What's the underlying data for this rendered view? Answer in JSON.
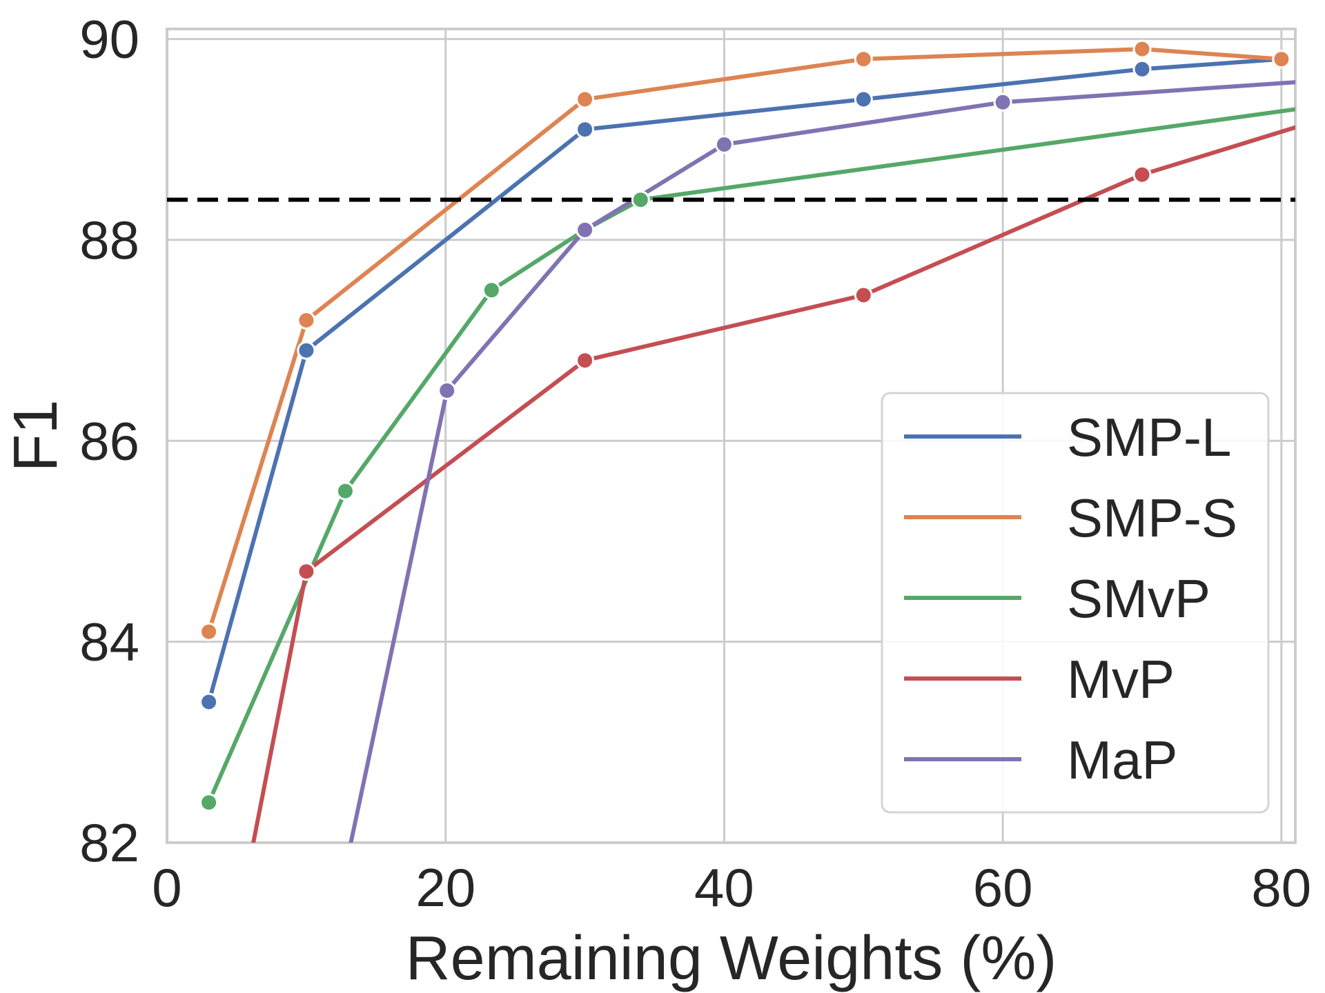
{
  "chart_data": {
    "type": "line",
    "title": "",
    "xlabel": "Remaining Weights (%)",
    "ylabel": "F1",
    "xlim": [
      0,
      81
    ],
    "ylim": [
      82,
      90.1
    ],
    "xticks": [
      0,
      20,
      40,
      60,
      80
    ],
    "yticks": [
      82,
      84,
      86,
      88,
      90
    ],
    "xtick_labels": [
      "0",
      "20",
      "40",
      "60",
      "80"
    ],
    "ytick_labels": [
      "82",
      "84",
      "86",
      "88",
      "90"
    ],
    "grid": true,
    "legend_location": "lower-right",
    "reference_line": {
      "y": 88.4,
      "style": "dashed",
      "color": "#000000"
    },
    "series": [
      {
        "name": "SMP-L",
        "color": "#4c72b0",
        "x": [
          3,
          10,
          30,
          50,
          70,
          80
        ],
        "y": [
          83.4,
          86.9,
          89.1,
          89.4,
          89.7,
          89.8
        ]
      },
      {
        "name": "SMP-S",
        "color": "#dd8452",
        "x": [
          3,
          10,
          30,
          50,
          70,
          80
        ],
        "y": [
          84.1,
          87.2,
          89.4,
          89.8,
          89.9,
          89.8
        ]
      },
      {
        "name": "SMvP",
        "color": "#55a868",
        "x": [
          3,
          12.8,
          23.3,
          30,
          34,
          81
        ],
        "y": [
          82.4,
          85.5,
          87.5,
          88.1,
          88.4,
          89.3
        ]
      },
      {
        "name": "MvP",
        "color": "#c44e52",
        "x": [
          6.2,
          10,
          30,
          50,
          70,
          81
        ],
        "y": [
          82.0,
          84.7,
          86.8,
          87.45,
          88.65,
          89.12
        ]
      },
      {
        "name": "MaP",
        "color": "#8172b2",
        "x": [
          13.2,
          20.1,
          30,
          40,
          60,
          81
        ],
        "y": [
          82.0,
          86.5,
          88.1,
          88.95,
          89.37,
          89.57
        ]
      }
    ],
    "markers": [
      {
        "series": "SMP-L",
        "points": [
          0,
          1,
          2,
          3,
          4,
          5
        ]
      },
      {
        "series": "SMP-S",
        "points": [
          0,
          1,
          2,
          3,
          4,
          5
        ]
      },
      {
        "series": "SMvP",
        "points": [
          0,
          1,
          2,
          3,
          4
        ]
      },
      {
        "series": "MvP",
        "points": [
          1,
          2,
          3,
          4
        ]
      },
      {
        "series": "MaP",
        "points": [
          1,
          2,
          3,
          4
        ]
      }
    ]
  }
}
